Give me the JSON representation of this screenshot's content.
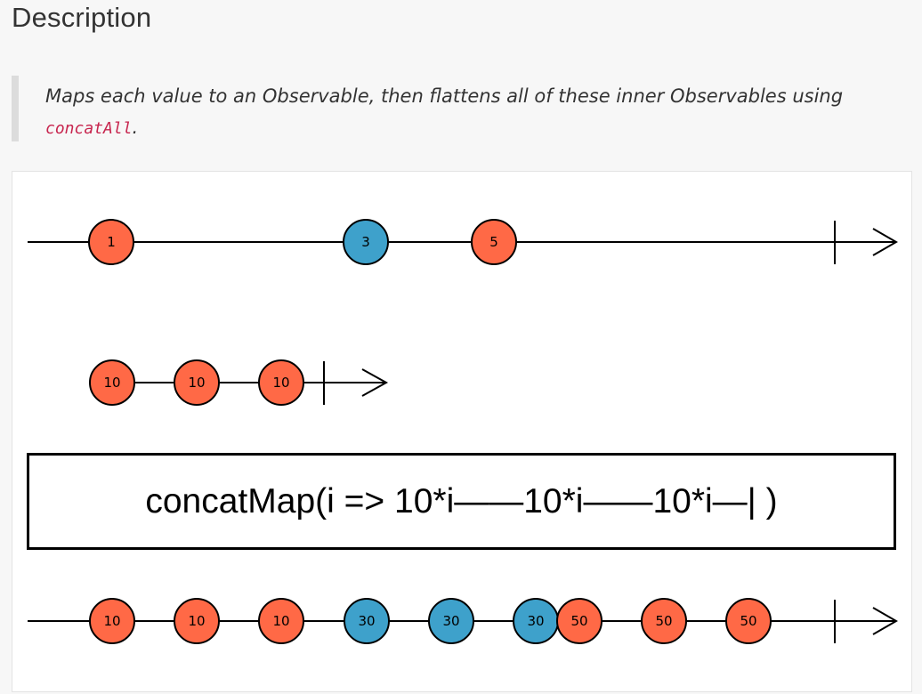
{
  "header": {
    "title": "Description"
  },
  "description": {
    "text_before": "Maps each value to an Observable, then flattens all of these inner Observables using ",
    "code": "concatAll",
    "text_after": "."
  },
  "colors": {
    "orange": "#ff6946",
    "blue": "#3ea1cb",
    "line": "#000000"
  },
  "diagram": {
    "operator_label": "concatMap(i => 10*i——10*i——10*i—| )",
    "source": [
      {
        "label": "1",
        "color": "orange"
      },
      {
        "label": "3",
        "color": "blue"
      },
      {
        "label": "5",
        "color": "orange"
      }
    ],
    "inner": [
      {
        "label": "10",
        "color": "orange"
      },
      {
        "label": "10",
        "color": "orange"
      },
      {
        "label": "10",
        "color": "orange"
      }
    ],
    "output": [
      {
        "label": "10",
        "color": "orange"
      },
      {
        "label": "10",
        "color": "orange"
      },
      {
        "label": "10",
        "color": "orange"
      },
      {
        "label": "30",
        "color": "blue"
      },
      {
        "label": "30",
        "color": "blue"
      },
      {
        "label": "30",
        "color": "blue"
      },
      {
        "label": "50",
        "color": "orange"
      },
      {
        "label": "50",
        "color": "orange"
      },
      {
        "label": "50",
        "color": "orange"
      }
    ]
  }
}
